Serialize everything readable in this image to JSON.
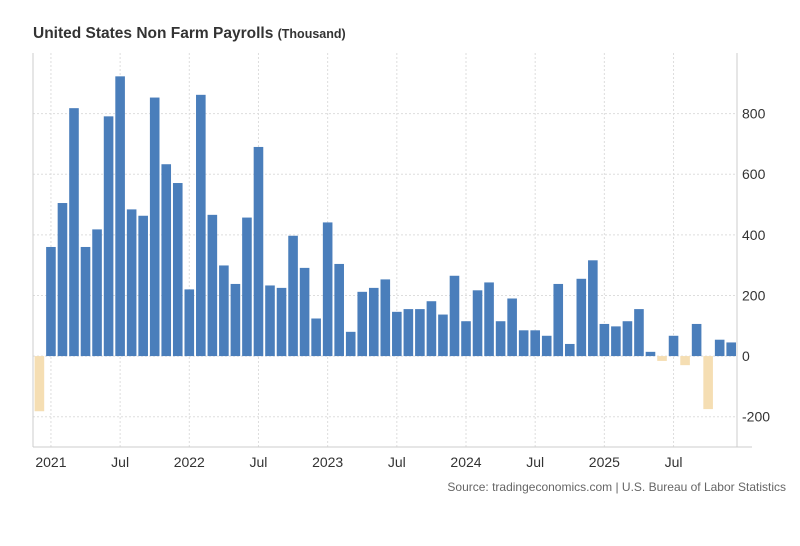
{
  "chart_data": {
    "type": "bar",
    "title": "United States Non Farm Payrolls",
    "unit": "(Thousand)",
    "source": "Source: tradingeconomics.com | U.S. Bureau of Labor Statistics",
    "categories": [
      "2020-12",
      "2021-01",
      "2021-02",
      "2021-03",
      "2021-04",
      "2021-05",
      "2021-06",
      "2021-07",
      "2021-08",
      "2021-09",
      "2021-10",
      "2021-11",
      "2021-12",
      "2022-01",
      "2022-02",
      "2022-03",
      "2022-04",
      "2022-05",
      "2022-06",
      "2022-07",
      "2022-08",
      "2022-09",
      "2022-10",
      "2022-11",
      "2022-12",
      "2023-01",
      "2023-02",
      "2023-03",
      "2023-04",
      "2023-05",
      "2023-06",
      "2023-07",
      "2023-08",
      "2023-09",
      "2023-10",
      "2023-11",
      "2023-12",
      "2024-01",
      "2024-02",
      "2024-03",
      "2024-04",
      "2024-05",
      "2024-06",
      "2024-07",
      "2024-08",
      "2024-09",
      "2024-10",
      "2024-11",
      "2024-12",
      "2025-01",
      "2025-02",
      "2025-03",
      "2025-04",
      "2025-05",
      "2025-06",
      "2025-07",
      "2025-08",
      "2025-09",
      "2025-10",
      "2025-11",
      "2025-12"
    ],
    "values": [
      -182,
      360,
      505,
      818,
      360,
      418,
      791,
      923,
      484,
      463,
      853,
      633,
      571,
      220,
      862,
      466,
      299,
      238,
      457,
      690,
      233,
      225,
      397,
      291,
      124,
      441,
      304,
      80,
      212,
      225,
      253,
      146,
      155,
      155,
      181,
      137,
      265,
      115,
      217,
      243,
      115,
      190,
      85,
      85,
      67,
      238,
      40,
      255,
      316,
      106,
      98,
      115,
      155,
      14,
      -16,
      67,
      -30,
      106,
      -175,
      54,
      45
    ],
    "x_ticks": [
      {
        "index": 1,
        "label": "2021"
      },
      {
        "index": 7,
        "label": "Jul"
      },
      {
        "index": 13,
        "label": "2022"
      },
      {
        "index": 19,
        "label": "Jul"
      },
      {
        "index": 25,
        "label": "2023"
      },
      {
        "index": 31,
        "label": "Jul"
      },
      {
        "index": 37,
        "label": "2024"
      },
      {
        "index": 43,
        "label": "Jul"
      },
      {
        "index": 49,
        "label": "2025"
      },
      {
        "index": 55,
        "label": "Jul"
      }
    ],
    "y_ticks": [
      -200,
      0,
      200,
      400,
      600,
      800
    ],
    "ylim": [
      -300,
      1000
    ],
    "grid": true,
    "y_axis_position": "right",
    "colors": {
      "positive": "#4a7ebb",
      "negative": "#f5deb3",
      "grid": "#dddddd",
      "axis": "#cccccc"
    }
  }
}
